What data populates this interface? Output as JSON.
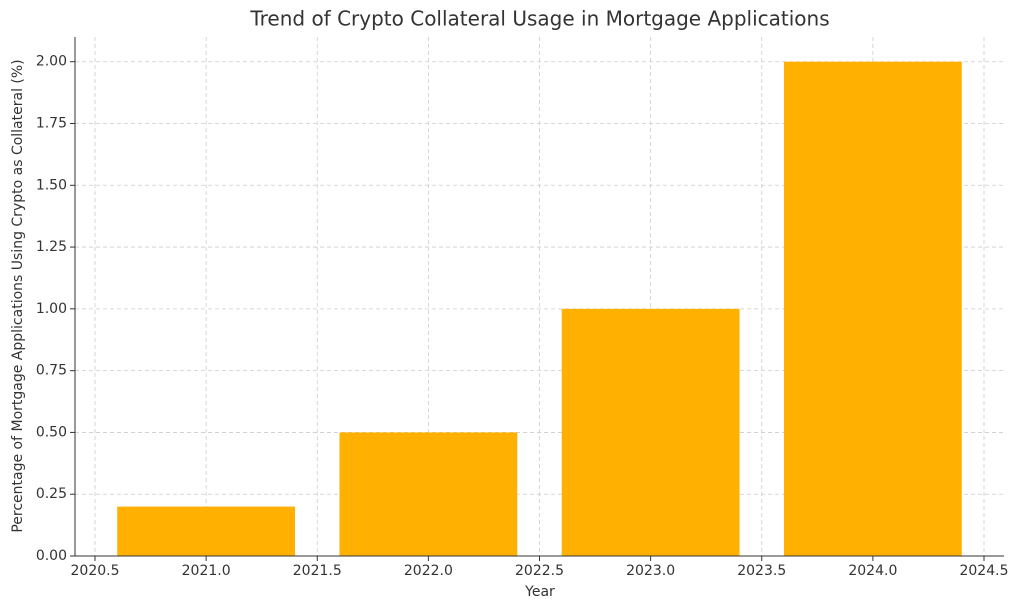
{
  "chart_data": {
    "type": "bar",
    "title": "Trend of Crypto Collateral Usage in Mortgage Applications",
    "x_label": "Year",
    "y_label": "Percentage of Mortgage Applications Using Crypto as Collateral (%)",
    "x": [
      2021,
      2022,
      2023,
      2024
    ],
    "values": [
      0.2,
      0.5,
      1.0,
      2.0
    ],
    "color": "#ffb000",
    "bar_width": 0.8,
    "xlim": [
      2020.41,
      2024.59
    ],
    "xticks": [
      2020.5,
      {
        "value": 2021,
        "label": "2021.0"
      },
      2021.5,
      {
        "value": 2022,
        "label": "2022.0"
      },
      2022.5,
      {
        "value": 2023,
        "label": "2023.0"
      },
      2023.5,
      {
        "value": 2024,
        "label": "2024.0"
      },
      2024.5
    ],
    "ylim": [
      0,
      2.1
    ],
    "yticks": [
      {
        "value": 0,
        "label": "0.00"
      },
      {
        "value": 0.25,
        "label": "0.25"
      },
      {
        "value": 0.5,
        "label": "0.50"
      },
      {
        "value": 0.75,
        "label": "0.75"
      },
      {
        "value": 1,
        "label": "1.00"
      },
      {
        "value": 1.25,
        "label": "1.25"
      },
      {
        "value": 1.5,
        "label": "1.50"
      },
      {
        "value": 1.75,
        "label": "1.75"
      },
      {
        "value": 2,
        "label": "2.00"
      }
    ],
    "grid": true
  }
}
